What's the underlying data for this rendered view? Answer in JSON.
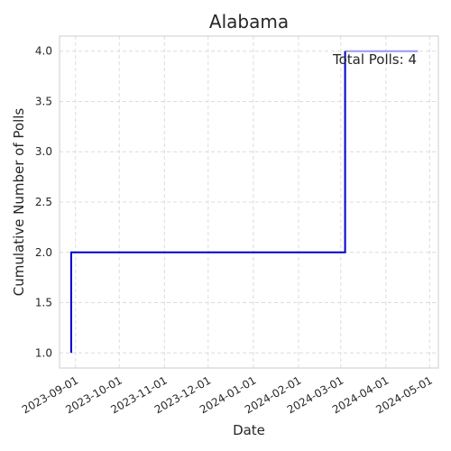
{
  "chart_data": {
    "type": "line",
    "step": true,
    "title": "Alabama",
    "xlabel": "Date",
    "ylabel": "Cumulative Number of Polls",
    "x_type": "date",
    "xlim": [
      "2023-08-21",
      "2024-05-07"
    ],
    "ylim": [
      0.85,
      4.15
    ],
    "x_ticks": [
      "2023-09-01",
      "2023-10-01",
      "2023-11-01",
      "2023-12-01",
      "2024-01-01",
      "2024-02-01",
      "2024-03-01",
      "2024-04-01",
      "2024-05-01"
    ],
    "y_ticks": [
      "1.0",
      "1.5",
      "2.0",
      "2.5",
      "3.0",
      "3.5",
      "4.0"
    ],
    "grid": true,
    "series": [
      {
        "color": "#0000cc",
        "points": [
          {
            "x": "2023-08-29",
            "y": 1
          },
          {
            "x": "2023-08-29",
            "y": 2
          },
          {
            "x": "2024-03-04",
            "y": 2
          },
          {
            "x": "2024-03-04",
            "y": 4
          }
        ],
        "faded_extension": {
          "x_end": "2024-04-23",
          "y": 4,
          "color": "#9a9af0"
        }
      }
    ],
    "annotation": "Total Polls: 4"
  }
}
